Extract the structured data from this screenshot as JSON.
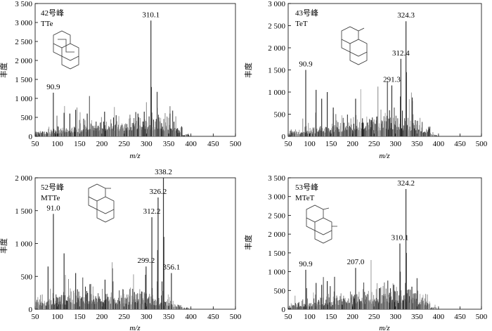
{
  "chart_data": [
    {
      "type": "bar",
      "peak_label": "42号峰",
      "compound": "TTe",
      "xlabel": "m/z",
      "ylabel": "丰度",
      "xlim": [
        50,
        500
      ],
      "ylim": [
        0,
        3500
      ],
      "xticks": [
        50,
        100,
        150,
        200,
        250,
        300,
        350,
        400,
        450,
        500
      ],
      "yticks": [
        0,
        500,
        1000,
        1500,
        2000,
        2500,
        3000,
        3500
      ],
      "ytick_labels": [
        "0",
        "500",
        "1 000",
        "1 500",
        "2 000",
        "2 500",
        "3 000",
        "3 500"
      ],
      "peaks": [
        {
          "x": 310.1,
          "y": 3050
        },
        {
          "x": 90.9,
          "y": 1150
        },
        {
          "x": 311.1,
          "y": 1300
        },
        {
          "x": 324.1,
          "y": 750
        },
        {
          "x": 295.1,
          "y": 650
        },
        {
          "x": 141.0,
          "y": 700
        },
        {
          "x": 206.0,
          "y": 650
        },
        {
          "x": 115.0,
          "y": 620
        },
        {
          "x": 128.0,
          "y": 600
        },
        {
          "x": 167.0,
          "y": 600
        },
        {
          "x": 281.0,
          "y": 600
        },
        {
          "x": 353.0,
          "y": 600
        }
      ],
      "annotations": [
        {
          "x": 310.1,
          "text": "310.1"
        },
        {
          "x": 90.9,
          "text": "90.9"
        }
      ]
    },
    {
      "type": "bar",
      "peak_label": "43号峰",
      "compound": "TeT",
      "xlabel": "m/z",
      "ylabel": "丰度",
      "xlim": [
        50,
        500
      ],
      "ylim": [
        0,
        3000
      ],
      "xticks": [
        50,
        100,
        150,
        200,
        250,
        300,
        350,
        400,
        450,
        500
      ],
      "yticks": [
        0,
        500,
        1000,
        1500,
        2000,
        2500,
        3000
      ],
      "ytick_labels": [
        "0",
        "500",
        "1 000",
        "1 500",
        "2 000",
        "2 500",
        "3 000"
      ],
      "peaks": [
        {
          "x": 324.3,
          "y": 2600
        },
        {
          "x": 312.4,
          "y": 1750
        },
        {
          "x": 291.3,
          "y": 1150
        },
        {
          "x": 90.9,
          "y": 1500
        },
        {
          "x": 325.3,
          "y": 1450
        },
        {
          "x": 311.3,
          "y": 900
        },
        {
          "x": 115.0,
          "y": 1050
        },
        {
          "x": 141.0,
          "y": 1000
        },
        {
          "x": 128.0,
          "y": 850
        },
        {
          "x": 207.0,
          "y": 850
        },
        {
          "x": 155.0,
          "y": 650
        },
        {
          "x": 339.0,
          "y": 800
        }
      ],
      "annotations": [
        {
          "x": 324.3,
          "text": "324.3"
        },
        {
          "x": 312.4,
          "text": "312.4"
        },
        {
          "x": 291.3,
          "text": "291.3"
        },
        {
          "x": 90.9,
          "text": "90.9"
        }
      ]
    },
    {
      "type": "bar",
      "peak_label": "52号峰",
      "compound": "MTTe",
      "xlabel": "m/z",
      "ylabel": "丰度",
      "xlim": [
        50,
        500
      ],
      "ylim": [
        0,
        2000
      ],
      "xticks": [
        50,
        100,
        150,
        200,
        250,
        300,
        350,
        400,
        450,
        500
      ],
      "yticks": [
        0,
        500,
        1000,
        1500,
        2000
      ],
      "ytick_labels": [
        "0",
        "500",
        "1 000",
        "1 500",
        "2 000"
      ],
      "peaks": [
        {
          "x": 338.2,
          "y": 2000
        },
        {
          "x": 326.2,
          "y": 1700
        },
        {
          "x": 312.2,
          "y": 1400
        },
        {
          "x": 91.0,
          "y": 1450
        },
        {
          "x": 299.2,
          "y": 650
        },
        {
          "x": 356.1,
          "y": 550
        },
        {
          "x": 339.2,
          "y": 1100
        },
        {
          "x": 325.2,
          "y": 900
        },
        {
          "x": 115.0,
          "y": 850
        },
        {
          "x": 79.0,
          "y": 650
        },
        {
          "x": 141.0,
          "y": 550
        },
        {
          "x": 207.0,
          "y": 450
        }
      ],
      "annotations": [
        {
          "x": 338.2,
          "text": "338.2"
        },
        {
          "x": 326.2,
          "text": "326.2"
        },
        {
          "x": 312.2,
          "text": "312.2"
        },
        {
          "x": 91.0,
          "text": "91.0"
        },
        {
          "x": 299.2,
          "text": "299.2"
        },
        {
          "x": 356.1,
          "text": "356.1"
        }
      ]
    },
    {
      "type": "bar",
      "peak_label": "53号峰",
      "compound": "MTeT",
      "xlabel": "m/z",
      "ylabel": "丰度",
      "xlim": [
        50,
        500
      ],
      "ylim": [
        0,
        3500
      ],
      "xticks": [
        50,
        100,
        150,
        200,
        250,
        300,
        350,
        400,
        450,
        500
      ],
      "yticks": [
        0,
        500,
        1000,
        1500,
        2000,
        2500,
        3000,
        3500
      ],
      "ytick_labels": [
        "0",
        "500",
        "1 000",
        "1 500",
        "2 000",
        "2 500",
        "3 000",
        "3 500"
      ],
      "peaks": [
        {
          "x": 324.2,
          "y": 3200
        },
        {
          "x": 310.1,
          "y": 1750
        },
        {
          "x": 207.0,
          "y": 1100
        },
        {
          "x": 90.9,
          "y": 1050
        },
        {
          "x": 325.2,
          "y": 1500
        },
        {
          "x": 311.1,
          "y": 1000
        },
        {
          "x": 141.0,
          "y": 750
        },
        {
          "x": 115.0,
          "y": 700
        },
        {
          "x": 128.0,
          "y": 650
        },
        {
          "x": 296.0,
          "y": 650
        },
        {
          "x": 338.0,
          "y": 600
        }
      ],
      "annotations": [
        {
          "x": 324.2,
          "text": "324.2"
        },
        {
          "x": 310.1,
          "text": "310.1"
        },
        {
          "x": 207.0,
          "text": "207.0"
        },
        {
          "x": 90.9,
          "text": "90.9"
        }
      ]
    }
  ]
}
